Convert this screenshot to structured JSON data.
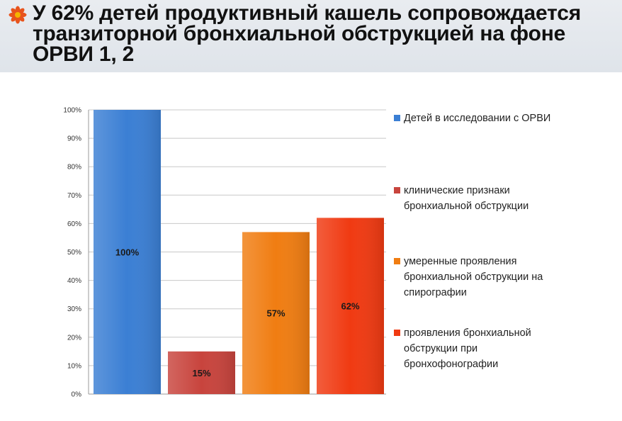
{
  "header": {
    "title": "У 62% детей продуктивный кашель сопровождается транзиторной бронхиальной обструкцией на фоне ОРВИ 1, 2",
    "bullet_icon": "flower-bullet-icon",
    "bullet_color": "#e8541c"
  },
  "chart_data": {
    "type": "bar",
    "title": "",
    "xlabel": "",
    "ylabel": "",
    "categories": [
      "Детей в исследовании с ОРВИ",
      "клинические признаки бронхиальной обструкции",
      "умеренные проявления бронхиальной обструкции на спирографии",
      "проявления бронхиальной обструкции при бронхофонографии"
    ],
    "values": [
      100,
      15,
      57,
      62
    ],
    "value_labels": [
      "100%",
      "15%",
      "57%",
      "62%"
    ],
    "colors": [
      "#3b7fd4",
      "#c8443d",
      "#f07d12",
      "#f03a12"
    ],
    "ylim": [
      0,
      100
    ],
    "y_ticks": [
      0,
      10,
      20,
      30,
      40,
      50,
      60,
      70,
      80,
      90,
      100
    ],
    "y_tick_labels": [
      "0%",
      "10%",
      "20%",
      "30%",
      "40%",
      "50%",
      "60%",
      "70%",
      "80%",
      "90%",
      "100%"
    ],
    "grid": true,
    "legend_position": "right"
  }
}
